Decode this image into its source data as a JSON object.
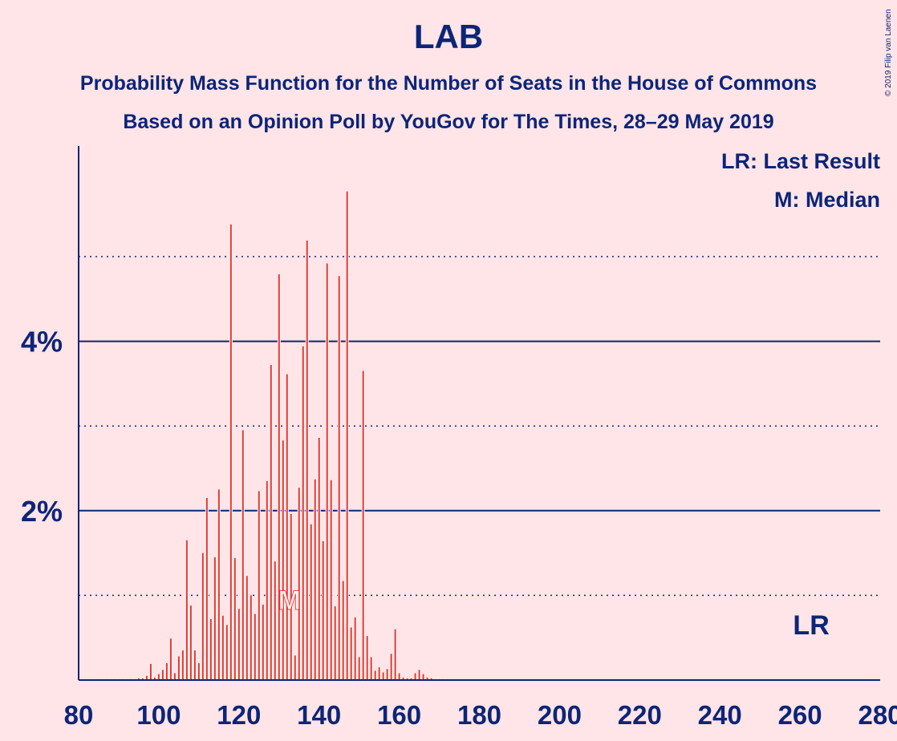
{
  "chart_data": {
    "type": "bar",
    "title": "LAB",
    "subtitle": "Probability Mass Function for the Number of Seats in the House of Commons",
    "subtitle2": "Based on an Opinion Poll by YouGov for The Times, 28–29 May 2019",
    "copyright": "© 2019 Filip van Laenen",
    "legend": [
      "LR: Last Result",
      "M: Median"
    ],
    "legend_position": "top-right",
    "xlim": [
      80,
      280
    ],
    "ylim": [
      0,
      6.3
    ],
    "x_ticks": [
      80,
      100,
      120,
      140,
      160,
      180,
      200,
      220,
      240,
      260,
      280
    ],
    "y_ticks": [
      {
        "value": 2,
        "label": "2%"
      },
      {
        "value": 4,
        "label": "4%"
      }
    ],
    "y_minor_ticks": [
      1,
      3,
      5
    ],
    "grid": true,
    "bar_color": "#E8312A",
    "axis_color": "#0C2577",
    "median": {
      "x": 133,
      "label": "M"
    },
    "last_result": {
      "x": 262,
      "label": "LR"
    },
    "x": [
      85,
      86,
      87,
      88,
      89,
      90,
      91,
      92,
      93,
      94,
      95,
      96,
      97,
      98,
      99,
      100,
      101,
      102,
      103,
      104,
      105,
      106,
      107,
      108,
      109,
      110,
      111,
      112,
      113,
      114,
      115,
      116,
      117,
      118,
      119,
      120,
      121,
      122,
      123,
      124,
      125,
      126,
      127,
      128,
      129,
      130,
      131,
      132,
      133,
      134,
      135,
      136,
      137,
      138,
      139,
      140,
      141,
      142,
      143,
      144,
      145,
      146,
      147,
      148,
      149,
      150,
      151,
      152,
      153,
      154,
      155,
      156,
      157,
      158,
      159,
      160,
      161,
      162,
      163,
      164,
      165,
      166,
      167,
      168,
      169,
      170,
      171,
      172
    ],
    "values": [
      0.01,
      0.01,
      0.01,
      0.01,
      0.01,
      0.01,
      0.01,
      0.01,
      0.01,
      0.01,
      0.02,
      0.02,
      0.05,
      0.19,
      0.03,
      0.07,
      0.12,
      0.2,
      0.49,
      0.08,
      0.28,
      0.35,
      1.65,
      0.88,
      0.35,
      0.2,
      1.5,
      2.15,
      0.72,
      1.45,
      2.25,
      0.76,
      0.65,
      5.38,
      1.44,
      0.84,
      2.95,
      1.23,
      1.0,
      0.78,
      2.23,
      0.89,
      2.35,
      3.72,
      1.4,
      4.79,
      2.83,
      3.61,
      1.96,
      0.29,
      2.27,
      3.94,
      5.19,
      1.84,
      2.37,
      2.86,
      1.64,
      4.92,
      2.36,
      0.87,
      4.77,
      1.17,
      5.77,
      0.62,
      0.74,
      0.27,
      3.65,
      0.52,
      0.27,
      0.11,
      0.15,
      0.09,
      0.13,
      0.31,
      0.6,
      0.08,
      0.03,
      0.02,
      0.02,
      0.08,
      0.12,
      0.07,
      0.03,
      0.02,
      0.01,
      0.01,
      0.01,
      0.01
    ]
  }
}
